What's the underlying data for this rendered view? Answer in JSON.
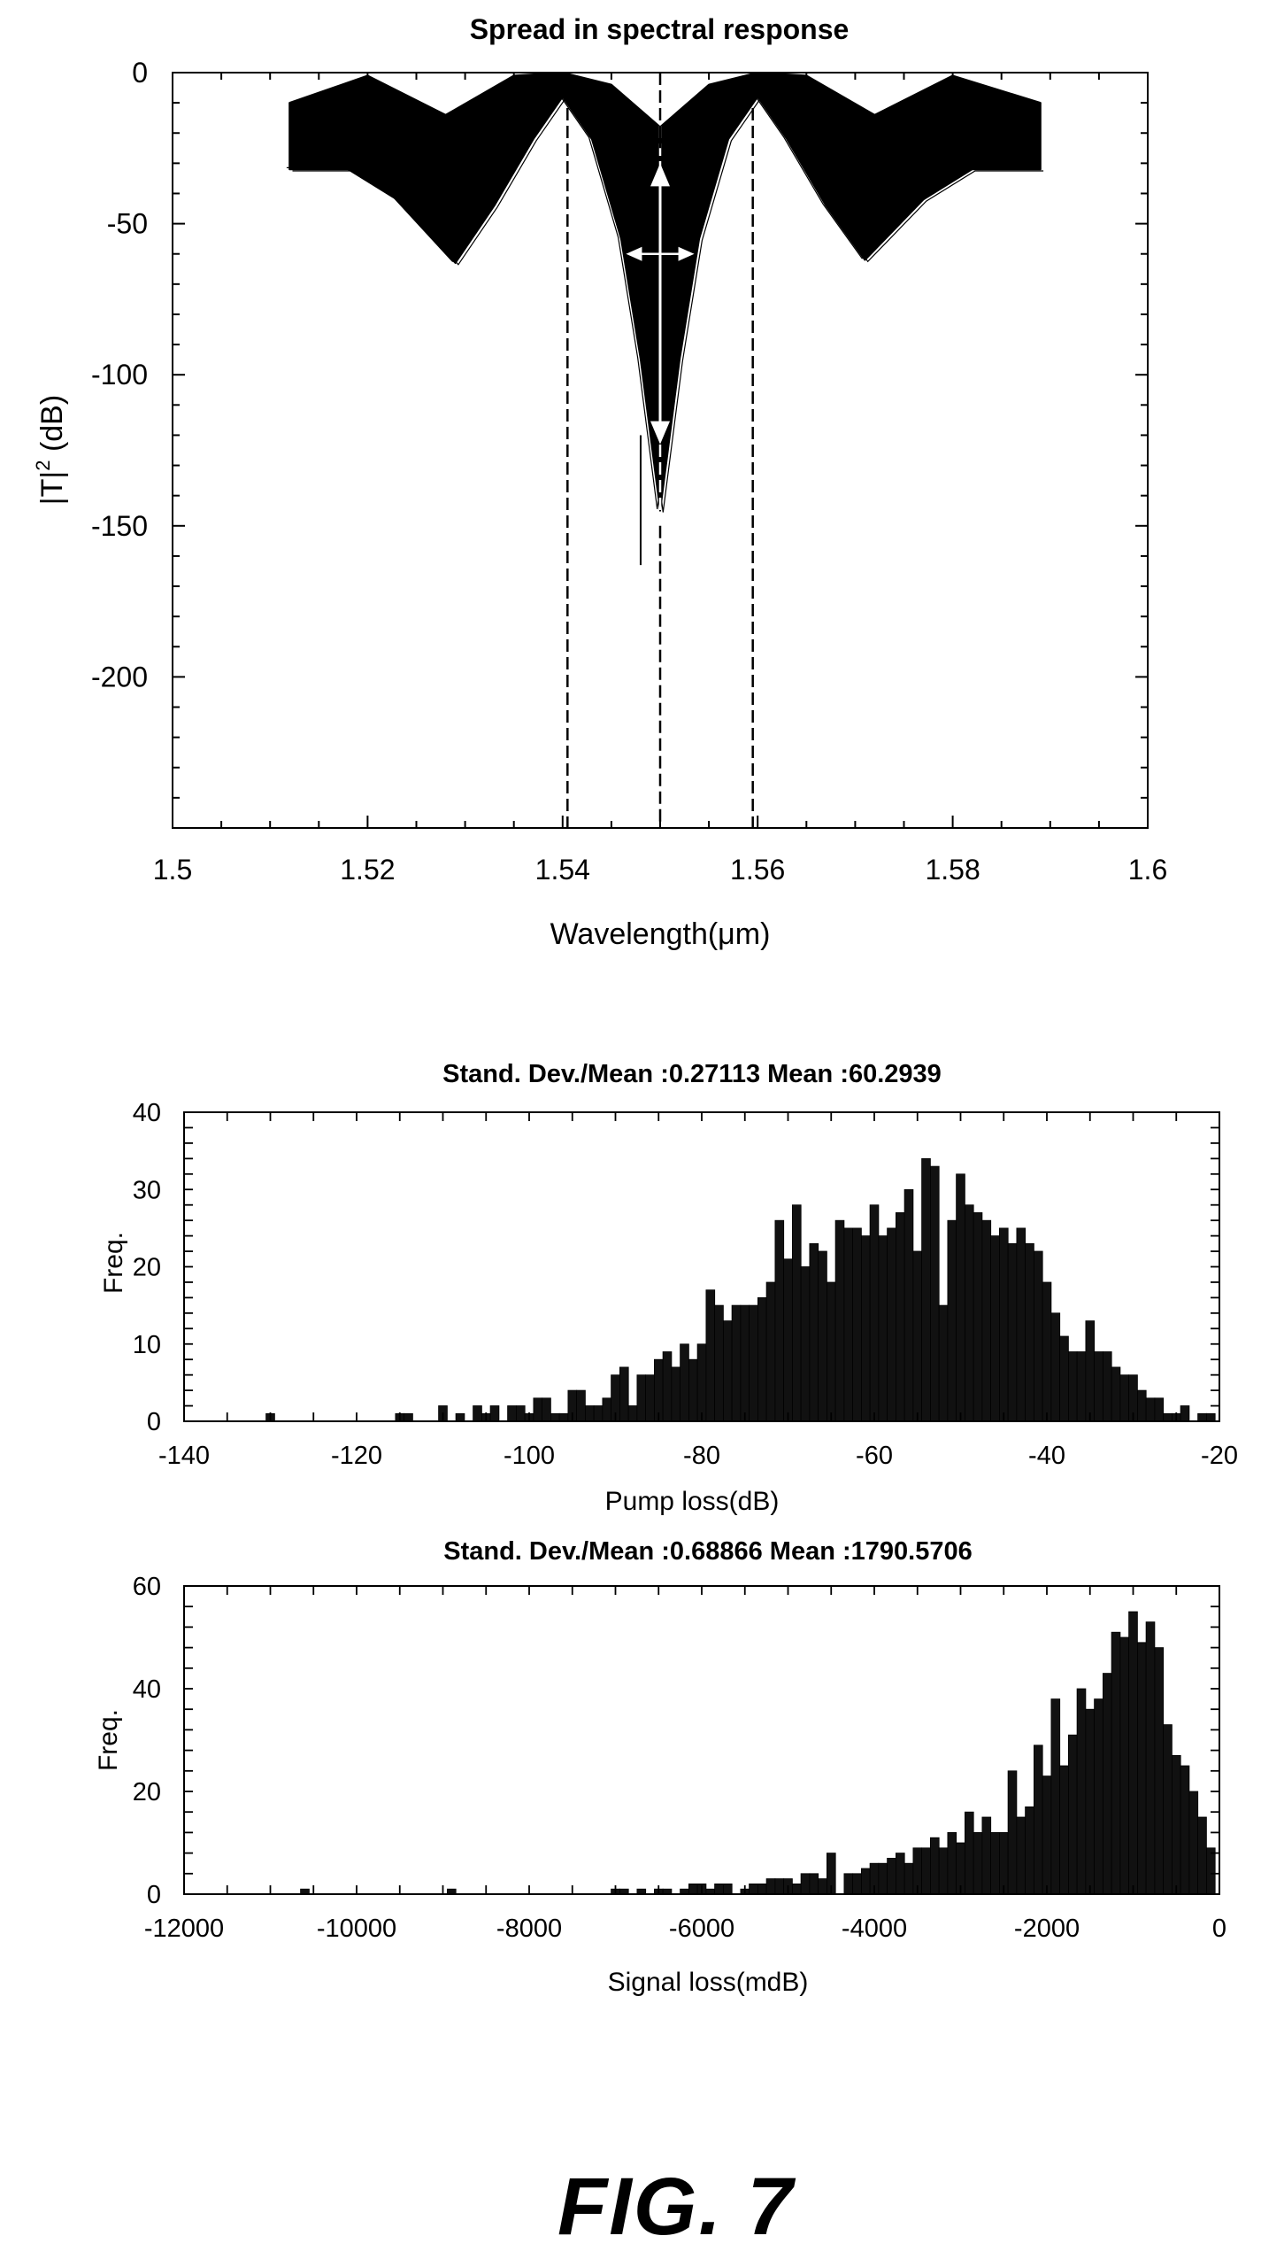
{
  "figure_label": "FIG. 7",
  "chart_data": [
    {
      "type": "line",
      "title": "Spread in spectral response",
      "xlabel": "Wavelength(μm)",
      "ylabel_main": "|T|",
      "ylabel_sup": "2",
      "ylabel_tail": " (dB)",
      "xlim": [
        1.5,
        1.6
      ],
      "ylim": [
        -250,
        0
      ],
      "x_ticks": [
        "1.5",
        "1.52",
        "1.54",
        "1.56",
        "1.58",
        "1.6"
      ],
      "y_ticks": [
        "0",
        "-50",
        "-100",
        "-150",
        "-200"
      ],
      "grid": false,
      "vertical_markers": [
        1.5405,
        1.55,
        1.5595
      ],
      "envelope": {
        "x_range": [
          1.512,
          1.589
        ],
        "upper_dB": [
          [
            1.512,
            -10
          ],
          [
            1.52,
            -1
          ],
          [
            1.528,
            -14
          ],
          [
            1.535,
            -1
          ],
          [
            1.54,
            0
          ],
          [
            1.545,
            -4
          ],
          [
            1.55,
            -18
          ],
          [
            1.555,
            -4
          ],
          [
            1.56,
            0
          ],
          [
            1.565,
            -1
          ],
          [
            1.572,
            -14
          ],
          [
            1.58,
            -1
          ],
          [
            1.589,
            -10
          ]
        ],
        "lower_dB": [
          [
            1.512,
            -32
          ],
          [
            1.518,
            -32
          ],
          [
            1.523,
            -42
          ],
          [
            1.529,
            -63
          ],
          [
            1.533,
            -44
          ],
          [
            1.537,
            -22
          ],
          [
            1.54,
            -8
          ],
          [
            1.543,
            -22
          ],
          [
            1.546,
            -55
          ],
          [
            1.548,
            -95
          ],
          [
            1.55,
            -145
          ],
          [
            1.552,
            -95
          ],
          [
            1.554,
            -55
          ],
          [
            1.557,
            -22
          ],
          [
            1.56,
            -8
          ],
          [
            1.563,
            -22
          ],
          [
            1.567,
            -44
          ],
          [
            1.571,
            -62
          ],
          [
            1.577,
            -42
          ],
          [
            1.582,
            -32
          ],
          [
            1.589,
            -32
          ]
        ]
      },
      "spike": {
        "x": 1.548,
        "y": -163
      },
      "arrows": {
        "vertical": {
          "x": 1.55,
          "y_top": -30,
          "y_bottom": -123
        },
        "horizontal": {
          "y": -60,
          "x_left": 1.5465,
          "x_right": 1.5535
        }
      }
    },
    {
      "type": "bar",
      "title": "Stand. Dev./Mean :0.27113   Mean :60.2939",
      "xlabel": "Pump loss(dB)",
      "ylabel": "Freq.",
      "xlim": [
        -140,
        -20
      ],
      "ylim": [
        0,
        40
      ],
      "x_ticks": [
        "-140",
        "-120",
        "-100",
        "-80",
        "-60",
        "-40",
        "-20"
      ],
      "y_ticks": [
        "0",
        "10",
        "20",
        "30",
        "40"
      ],
      "bin_width": 1,
      "bins": [
        [
          -130,
          1
        ],
        [
          -115,
          1
        ],
        [
          -114,
          1
        ],
        [
          -110,
          2
        ],
        [
          -108,
          1
        ],
        [
          -106,
          2
        ],
        [
          -105,
          1
        ],
        [
          -104,
          2
        ],
        [
          -102,
          2
        ],
        [
          -101,
          2
        ],
        [
          -100,
          1
        ],
        [
          -99,
          3
        ],
        [
          -98,
          3
        ],
        [
          -97,
          1
        ],
        [
          -96,
          1
        ],
        [
          -95,
          4
        ],
        [
          -94,
          4
        ],
        [
          -93,
          2
        ],
        [
          -92,
          2
        ],
        [
          -91,
          3
        ],
        [
          -90,
          6
        ],
        [
          -89,
          7
        ],
        [
          -88,
          2
        ],
        [
          -87,
          6
        ],
        [
          -86,
          6
        ],
        [
          -85,
          8
        ],
        [
          -84,
          9
        ],
        [
          -83,
          7
        ],
        [
          -82,
          10
        ],
        [
          -81,
          8
        ],
        [
          -80,
          10
        ],
        [
          -79,
          17
        ],
        [
          -78,
          15
        ],
        [
          -77,
          13
        ],
        [
          -76,
          15
        ],
        [
          -75,
          15
        ],
        [
          -74,
          15
        ],
        [
          -73,
          16
        ],
        [
          -72,
          18
        ],
        [
          -71,
          26
        ],
        [
          -70,
          21
        ],
        [
          -69,
          28
        ],
        [
          -68,
          20
        ],
        [
          -67,
          23
        ],
        [
          -66,
          22
        ],
        [
          -65,
          18
        ],
        [
          -64,
          26
        ],
        [
          -63,
          25
        ],
        [
          -62,
          25
        ],
        [
          -61,
          24
        ],
        [
          -60,
          28
        ],
        [
          -59,
          24
        ],
        [
          -58,
          25
        ],
        [
          -57,
          27
        ],
        [
          -56,
          30
        ],
        [
          -55,
          22
        ],
        [
          -54,
          34
        ],
        [
          -53,
          33
        ],
        [
          -52,
          15
        ],
        [
          -51,
          26
        ],
        [
          -50,
          32
        ],
        [
          -49,
          28
        ],
        [
          -48,
          27
        ],
        [
          -47,
          26
        ],
        [
          -46,
          24
        ],
        [
          -45,
          25
        ],
        [
          -44,
          23
        ],
        [
          -43,
          25
        ],
        [
          -42,
          23
        ],
        [
          -41,
          22
        ],
        [
          -40,
          18
        ],
        [
          -39,
          14
        ],
        [
          -38,
          11
        ],
        [
          -37,
          9
        ],
        [
          -36,
          9
        ],
        [
          -35,
          13
        ],
        [
          -34,
          9
        ],
        [
          -33,
          9
        ],
        [
          -32,
          7
        ],
        [
          -31,
          6
        ],
        [
          -30,
          6
        ],
        [
          -29,
          4
        ],
        [
          -28,
          3
        ],
        [
          -27,
          3
        ],
        [
          -26,
          1
        ],
        [
          -25,
          1
        ],
        [
          -24,
          2
        ],
        [
          -22,
          1
        ],
        [
          -21,
          1
        ]
      ]
    },
    {
      "type": "bar",
      "title": "Stand. Dev./Mean :0.68866  Mean :1790.5706",
      "xlabel": "Signal loss(mdB)",
      "ylabel": "Freq.",
      "xlim": [
        -12000,
        0
      ],
      "ylim": [
        0,
        60
      ],
      "x_ticks": [
        "-12000",
        "-10000",
        "-8000",
        "-6000",
        "-4000",
        "-2000",
        "0"
      ],
      "y_ticks": [
        "0",
        "20",
        "40",
        "60"
      ],
      "bin_width": 100,
      "bins": [
        [
          -10600,
          1
        ],
        [
          -8900,
          1
        ],
        [
          -7000,
          1
        ],
        [
          -6900,
          1
        ],
        [
          -6700,
          1
        ],
        [
          -6500,
          1
        ],
        [
          -6400,
          1
        ],
        [
          -6200,
          1
        ],
        [
          -6100,
          2
        ],
        [
          -6000,
          2
        ],
        [
          -5900,
          1
        ],
        [
          -5800,
          2
        ],
        [
          -5700,
          2
        ],
        [
          -5500,
          1
        ],
        [
          -5400,
          2
        ],
        [
          -5300,
          2
        ],
        [
          -5200,
          3
        ],
        [
          -5100,
          3
        ],
        [
          -5000,
          3
        ],
        [
          -4900,
          2
        ],
        [
          -4800,
          4
        ],
        [
          -4700,
          4
        ],
        [
          -4600,
          3
        ],
        [
          -4500,
          8
        ],
        [
          -4300,
          4
        ],
        [
          -4200,
          4
        ],
        [
          -4100,
          5
        ],
        [
          -4000,
          6
        ],
        [
          -3900,
          6
        ],
        [
          -3800,
          7
        ],
        [
          -3700,
          8
        ],
        [
          -3600,
          6
        ],
        [
          -3500,
          9
        ],
        [
          -3400,
          9
        ],
        [
          -3300,
          11
        ],
        [
          -3200,
          9
        ],
        [
          -3100,
          12
        ],
        [
          -3000,
          10
        ],
        [
          -2900,
          16
        ],
        [
          -2800,
          12
        ],
        [
          -2700,
          15
        ],
        [
          -2600,
          12
        ],
        [
          -2500,
          12
        ],
        [
          -2400,
          24
        ],
        [
          -2300,
          15
        ],
        [
          -2200,
          17
        ],
        [
          -2100,
          29
        ],
        [
          -2000,
          23
        ],
        [
          -1900,
          38
        ],
        [
          -1800,
          25
        ],
        [
          -1700,
          31
        ],
        [
          -1600,
          40
        ],
        [
          -1500,
          36
        ],
        [
          -1400,
          38
        ],
        [
          -1300,
          43
        ],
        [
          -1200,
          51
        ],
        [
          -1100,
          50
        ],
        [
          -1000,
          55
        ],
        [
          -900,
          49
        ],
        [
          -800,
          53
        ],
        [
          -700,
          48
        ],
        [
          -600,
          33
        ],
        [
          -500,
          27
        ],
        [
          -400,
          25
        ],
        [
          -300,
          20
        ],
        [
          -200,
          15
        ],
        [
          -100,
          9
        ]
      ]
    }
  ]
}
